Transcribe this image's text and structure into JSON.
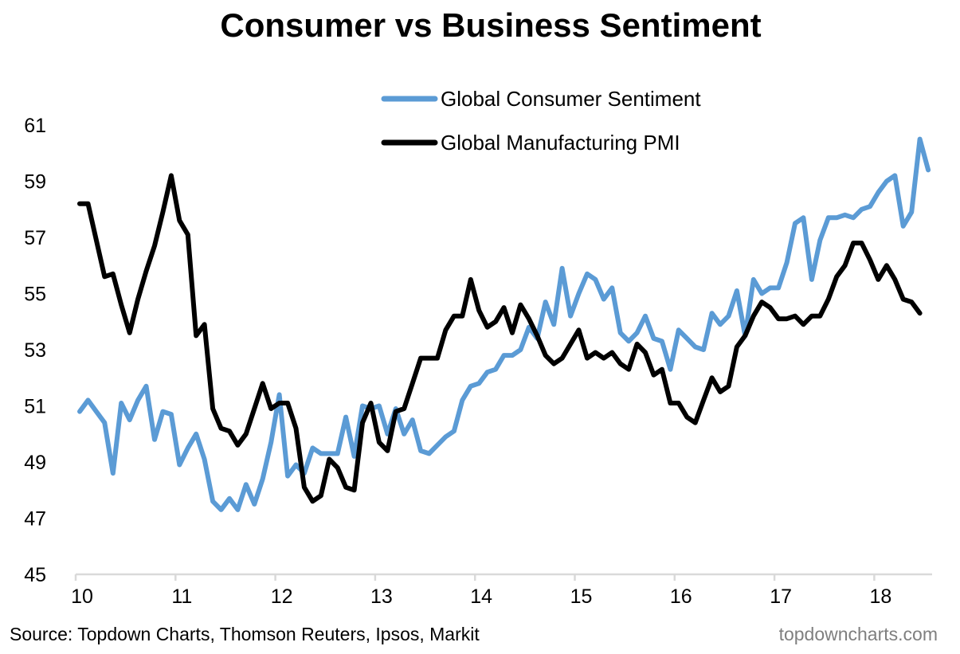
{
  "chart_data": {
    "type": "line",
    "title": "Consumer vs Business Sentiment",
    "xlabel": "",
    "ylabel": "",
    "ylim": [
      45,
      61
    ],
    "yticks": [
      45,
      47,
      49,
      51,
      53,
      55,
      57,
      59,
      61
    ],
    "xlim": [
      2010.0,
      2018.58
    ],
    "xticks": [
      {
        "value": 2010,
        "label": "10"
      },
      {
        "value": 2011,
        "label": "11"
      },
      {
        "value": 2012,
        "label": "12"
      },
      {
        "value": 2013,
        "label": "13"
      },
      {
        "value": 2014,
        "label": "14"
      },
      {
        "value": 2015,
        "label": "15"
      },
      {
        "value": 2016,
        "label": "16"
      },
      {
        "value": 2017,
        "label": "17"
      },
      {
        "value": 2018,
        "label": "18"
      }
    ],
    "grid": false,
    "legend_position": "top-right",
    "x_start": 2010.04,
    "x_step_months": 1,
    "series": [
      {
        "name": "Global Consumer Sentiment",
        "color": "#5b9bd5",
        "values": [
          50.8,
          51.2,
          50.8,
          50.4,
          48.6,
          51.1,
          50.5,
          51.2,
          51.7,
          49.8,
          50.8,
          50.7,
          48.9,
          49.5,
          50.0,
          49.1,
          47.6,
          47.3,
          47.7,
          47.3,
          48.2,
          47.5,
          48.4,
          49.7,
          51.4,
          48.5,
          48.9,
          48.6,
          49.5,
          49.3,
          49.3,
          49.3,
          50.6,
          49.2,
          51.0,
          50.9,
          51.0,
          50.0,
          50.9,
          50.0,
          50.5,
          49.4,
          49.3,
          49.6,
          49.9,
          50.1,
          51.2,
          51.7,
          51.8,
          52.2,
          52.3,
          52.8,
          52.8,
          53.0,
          53.8,
          53.4,
          54.7,
          53.9,
          55.9,
          54.2,
          55.0,
          55.7,
          55.5,
          54.8,
          55.2,
          53.6,
          53.3,
          53.6,
          54.2,
          53.4,
          53.3,
          52.3,
          53.7,
          53.4,
          53.1,
          53.0,
          54.3,
          53.9,
          54.2,
          55.1,
          53.5,
          55.5,
          55.0,
          55.2,
          55.2,
          56.1,
          57.5,
          57.7,
          55.5,
          56.9,
          57.7,
          57.7,
          57.8,
          57.7,
          58.0,
          58.1,
          58.6,
          59.0,
          59.2,
          57.4,
          57.9,
          60.5,
          59.4
        ]
      },
      {
        "name": "Global Manufacturing PMI",
        "color": "#000000",
        "values": [
          58.2,
          58.2,
          56.9,
          55.6,
          55.7,
          54.6,
          53.6,
          54.8,
          55.8,
          56.7,
          57.9,
          59.2,
          57.6,
          57.1,
          53.5,
          53.9,
          50.9,
          50.2,
          50.1,
          49.6,
          50.0,
          50.9,
          51.8,
          50.9,
          51.1,
          51.1,
          50.2,
          48.1,
          47.6,
          47.8,
          49.1,
          48.8,
          48.1,
          48.0,
          50.4,
          51.1,
          49.7,
          49.4,
          50.8,
          50.9,
          51.8,
          52.7,
          52.7,
          52.7,
          53.7,
          54.2,
          54.2,
          55.5,
          54.4,
          53.8,
          54.0,
          54.5,
          53.6,
          54.6,
          54.1,
          53.5,
          52.8,
          52.5,
          52.7,
          53.2,
          53.7,
          52.7,
          52.9,
          52.7,
          52.9,
          52.5,
          52.3,
          53.2,
          52.9,
          52.1,
          52.3,
          51.1,
          51.1,
          50.6,
          50.4,
          51.2,
          52.0,
          51.5,
          51.7,
          53.1,
          53.5,
          54.2,
          54.7,
          54.5,
          54.1,
          54.1,
          54.2,
          53.9,
          54.2,
          54.2,
          54.8,
          55.6,
          56.0,
          56.8,
          56.8,
          56.2,
          55.5,
          56.0,
          55.5,
          54.8,
          54.7,
          54.3
        ]
      }
    ]
  },
  "footer": {
    "source": "Source: Topdown Charts, Thomson Reuters, Ipsos, Markit",
    "brand": "topdowncharts.com"
  }
}
